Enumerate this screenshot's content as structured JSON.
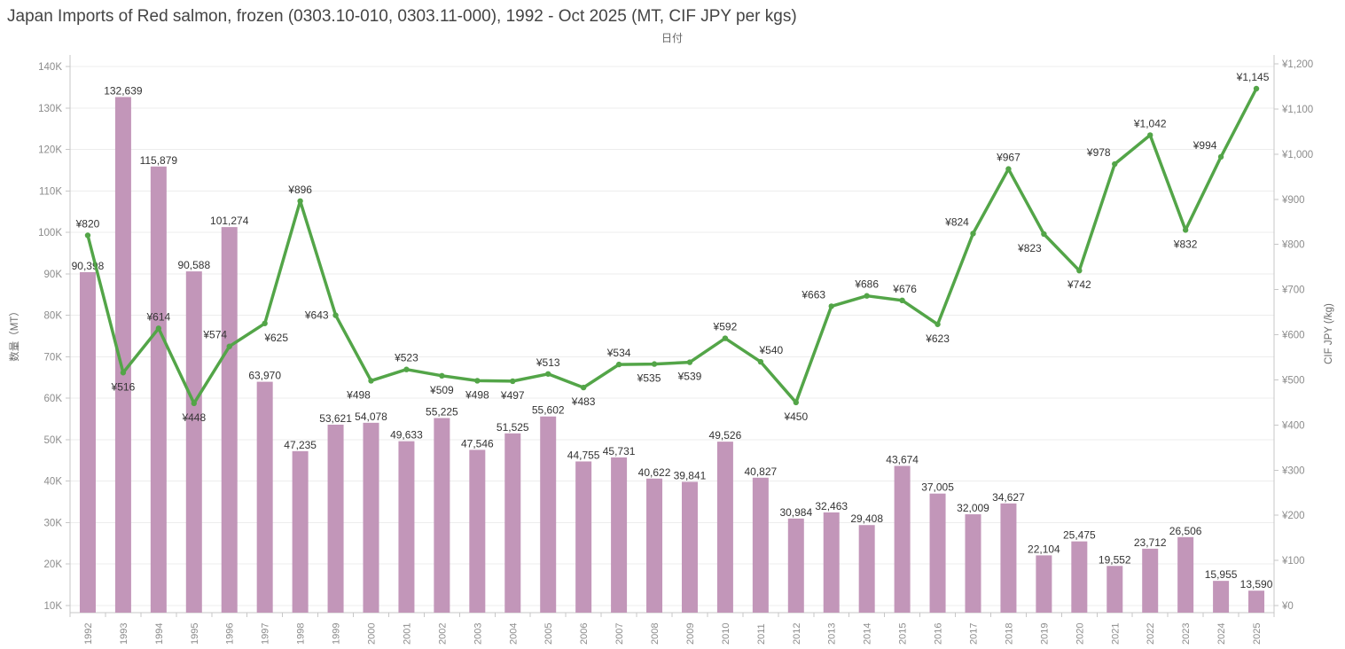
{
  "title": "Japan Imports of Red salmon, frozen (0303.10-010, 0303.11-000), 1992 - Oct 2025 (MT, CIF JPY per kgs)",
  "top_axis_title": "日付",
  "left_axis": {
    "title": "数量（MT）",
    "tick_labels": [
      "10K",
      "20K",
      "30K",
      "40K",
      "50K",
      "60K",
      "70K",
      "80K",
      "90K",
      "100K",
      "110K",
      "120K",
      "130K",
      "140K"
    ],
    "tick_values": [
      10000,
      20000,
      30000,
      40000,
      50000,
      60000,
      70000,
      80000,
      90000,
      100000,
      110000,
      120000,
      130000,
      140000
    ]
  },
  "right_axis": {
    "title": "CIF JPY (/kg)",
    "tick_labels": [
      "¥0",
      "¥100",
      "¥200",
      "¥300",
      "¥400",
      "¥500",
      "¥600",
      "¥700",
      "¥800",
      "¥900",
      "¥1,000",
      "¥1,100",
      "¥1,200"
    ],
    "tick_values": [
      0,
      100,
      200,
      300,
      400,
      500,
      600,
      700,
      800,
      900,
      1000,
      1100,
      1200
    ]
  },
  "colors": {
    "bar": "#c296b9",
    "line": "#53a548",
    "mark_label": "#333333",
    "axis_text": "#8c8c8c",
    "axis_title_text": "#6b6b6b",
    "grid": "#ededed",
    "ruler": "#c7c7c7"
  },
  "chart_data": {
    "type": "bar",
    "subtype": "dual-axis combo (bars = quantity MT on left axis, line = CIF JPY/kg on right axis)",
    "title": "Japan Imports of Red salmon, frozen (0303.10-010, 0303.11-000), 1992 - Oct 2025 (MT, CIF JPY per kgs)",
    "xlabel": "日付",
    "ylabel_left": "数量（MT）",
    "ylabel_right": "CIF JPY (/kg)",
    "ylim_left": [
      8300,
      142800
    ],
    "ylim_right": [
      -16,
      1224
    ],
    "grid": "on",
    "legend": "none",
    "categories": [
      "1992",
      "1993",
      "1994",
      "1995",
      "1996",
      "1997",
      "1998",
      "1999",
      "2000",
      "2001",
      "2002",
      "2003",
      "2004",
      "2005",
      "2006",
      "2007",
      "2008",
      "2009",
      "2010",
      "2011",
      "2012",
      "2013",
      "2014",
      "2015",
      "2016",
      "2017",
      "2018",
      "2019",
      "2020",
      "2021",
      "2022",
      "2023",
      "2024",
      "2025"
    ],
    "series": [
      {
        "name": "数量 (MT)",
        "type": "bar",
        "axis": "left",
        "values": [
          90398,
          132639,
          115879,
          90588,
          101274,
          63970,
          47235,
          53621,
          54078,
          49633,
          55225,
          47546,
          51525,
          55602,
          44755,
          45731,
          40622,
          39841,
          49526,
          40827,
          30984,
          32463,
          29408,
          43674,
          37005,
          32009,
          34627,
          22104,
          25475,
          19552,
          23712,
          26506,
          15955,
          13590
        ],
        "labels": [
          "90,398",
          "132,639",
          "115,879",
          "90,588",
          "101,274",
          "63,970",
          "47,235",
          "53,621",
          "54,078",
          "49,633",
          "55,225",
          "47,546",
          "51,525",
          "55,602",
          "44,755",
          "45,731",
          "40,622",
          "39,841",
          "49,526",
          "40,827",
          "30,984",
          "32,463",
          "29,408",
          "43,674",
          "37,005",
          "32,009",
          "34,627",
          "22,104",
          "25,475",
          "19,552",
          "23,712",
          "26,506",
          "15,955",
          "13,590"
        ]
      },
      {
        "name": "CIF JPY (/kg)",
        "type": "line",
        "axis": "right",
        "values": [
          820,
          516,
          614,
          448,
          574,
          625,
          896,
          643,
          498,
          523,
          509,
          498,
          497,
          513,
          483,
          534,
          535,
          539,
          592,
          540,
          450,
          663,
          686,
          676,
          623,
          824,
          967,
          823,
          742,
          978,
          1042,
          832,
          994,
          1145
        ],
        "labels": [
          "¥820",
          "¥516",
          "¥614",
          "¥448",
          "¥574",
          "¥625",
          "¥896",
          "¥643",
          "¥498",
          "¥523",
          "¥509",
          "¥498",
          "¥497",
          "¥513",
          "¥483",
          "¥534",
          "¥535",
          "¥539",
          "¥592",
          "¥540",
          "¥450",
          "¥663",
          "¥686",
          "¥676",
          "¥623",
          "¥824",
          "¥967",
          "¥823",
          "¥742",
          "¥978",
          "¥1,042",
          "¥832",
          "¥994",
          "¥1,145"
        ],
        "label_sides": [
          "above",
          "below",
          "above",
          "below",
          "above",
          "below",
          "above",
          "left",
          "below",
          "above",
          "below",
          "below",
          "below",
          "above",
          "below",
          "above",
          "below",
          "below",
          "above",
          "above",
          "below",
          "above",
          "above",
          "above",
          "below",
          "above",
          "above",
          "below",
          "below",
          "above",
          "above",
          "below",
          "above",
          "above"
        ],
        "label_dx": [
          0,
          0,
          0,
          0,
          -16,
          13,
          0,
          0,
          -14,
          0,
          0,
          0,
          0,
          0,
          0,
          0,
          -6,
          0,
          0,
          12,
          0,
          -20,
          0,
          3,
          0,
          -18,
          0,
          -16,
          0,
          -18,
          0,
          0,
          -18,
          -4
        ]
      }
    ]
  }
}
